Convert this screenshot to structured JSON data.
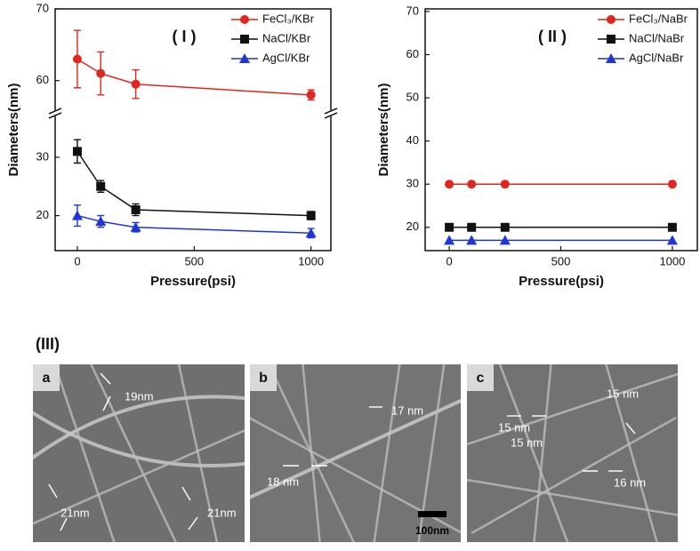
{
  "chart_data": [
    {
      "type": "line",
      "panel_label": "( I )",
      "x_label": "Pressure(psi)",
      "y_label": "Diameters(nm)",
      "x": [
        0,
        100,
        250,
        1000
      ],
      "xlim": [
        -95,
        1085
      ],
      "xticks": [
        0,
        500,
        1000
      ],
      "ylim": [
        14,
        70
      ],
      "ybreak": [
        37,
        56
      ],
      "yticks": [
        20,
        30,
        60,
        70
      ],
      "legend": "upper right",
      "series": [
        {
          "name": "FeCl₃/KBr",
          "color": "#e0261f",
          "marker": "circle",
          "values": [
            63,
            61,
            59.5,
            58
          ],
          "errors": [
            4,
            3,
            2,
            0.7
          ]
        },
        {
          "name": "NaCl/KBr",
          "color": "#111111",
          "marker": "square",
          "values": [
            31,
            25,
            21,
            20
          ],
          "errors": [
            2,
            1,
            1,
            0.7
          ]
        },
        {
          "name": "AgCl/KBr",
          "color": "#1f35d8",
          "marker": "triangle",
          "values": [
            20,
            19,
            18,
            17
          ],
          "errors": [
            1.8,
            1,
            0.8,
            0.8
          ]
        }
      ]
    },
    {
      "type": "line",
      "panel_label": "( II )",
      "x_label": "Pressure(psi)",
      "y_label": "Diameters(nm)",
      "x": [
        0,
        100,
        250,
        1000
      ],
      "xlim": [
        -108,
        1112
      ],
      "xticks": [
        0,
        500,
        1000
      ],
      "ylim": [
        14.6,
        70.6
      ],
      "yticks": [
        20,
        30,
        40,
        50,
        60,
        70
      ],
      "legend": "upper right",
      "series": [
        {
          "name": "FeCl₃/NaBr",
          "color": "#e0261f",
          "marker": "circle",
          "values": [
            30,
            30,
            30,
            30
          ]
        },
        {
          "name": "NaCl/NaBr",
          "color": "#111111",
          "marker": "square",
          "values": [
            20,
            20,
            20,
            20
          ]
        },
        {
          "name": "AgCl/NaBr",
          "color": "#1f35d8",
          "marker": "triangle",
          "values": [
            17,
            17,
            17,
            17
          ]
        }
      ]
    }
  ],
  "micrographs": {
    "label": "(III)",
    "panels": [
      {
        "label": "a",
        "annotations": [
          "19nm",
          "21nm",
          "21nm"
        ]
      },
      {
        "label": "b",
        "annotations": [
          "17 nm",
          "18 nm",
          "100nm"
        ]
      },
      {
        "label": "c",
        "annotations": [
          "15 nm",
          "15 nm",
          "15 nm",
          "16 nm"
        ]
      }
    ]
  }
}
